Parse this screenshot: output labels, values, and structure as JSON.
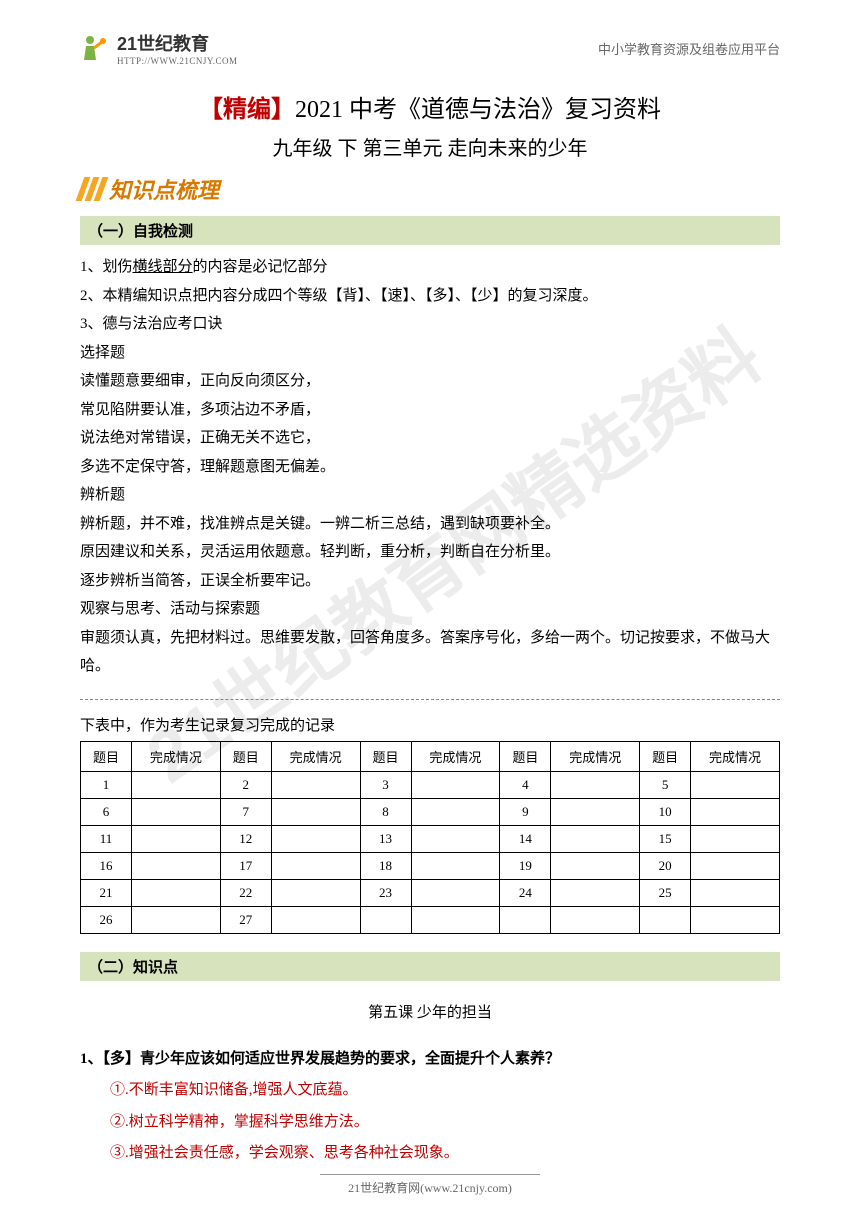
{
  "header": {
    "logo_text": "21世纪教育",
    "logo_sub": "HTTP://WWW.21CNJY.COM",
    "right_text": "中小学教育资源及组卷应用平台"
  },
  "watermark": "21世纪教育网精选资料",
  "title": {
    "prefix": "【精编】",
    "suffix": "2021 中考《道德与法治》复习资料"
  },
  "subtitle": "九年级 下 第三单元 走向未来的少年",
  "banner": "知识点梳理",
  "section1": {
    "header": "（一）自我检测",
    "line1_pre": "1、划伤",
    "line1_u": "横线部分",
    "line1_post": "的内容是必记忆部分",
    "line2": "2、本精编知识点把内容分成四个等级【背】、【速】、【多】、【少】的复习深度。",
    "line3": "3、德与法治应考口诀",
    "l4": "选择题",
    "l5": "读懂题意要细审，正向反向须区分，",
    "l6": "常见陷阱要认准，多项沾边不矛盾，",
    "l7": "说法绝对常错误，正确无关不选它，",
    "l8": "多选不定保守答，理解题意图无偏差。",
    "l9": "辨析题",
    "l10": "辨析题，并不难，找准辨点是关键。一辨二析三总结，遇到缺项要补全。",
    "l11": "原因建议和关系，灵活运用依题意。轻判断，重分析，判断自在分析里。",
    "l12": "逐步辨析当简答，正误全析要牢记。",
    "l13": "观察与思考、活动与探索题",
    "l14": "审题须认真，先把材料过。思维要发散，回答角度多。答案序号化，多给一两个。切记按要求，不做马大哈。"
  },
  "table_intro": "下表中，作为考生记录复习完成的记录",
  "table": {
    "headers": [
      "题目",
      "完成情况",
      "题目",
      "完成情况",
      "题目",
      "完成情况",
      "题目",
      "完成情况",
      "题目",
      "完成情况"
    ],
    "rows": [
      [
        "1",
        "",
        "2",
        "",
        "3",
        "",
        "4",
        "",
        "5",
        ""
      ],
      [
        "6",
        "",
        "7",
        "",
        "8",
        "",
        "9",
        "",
        "10",
        ""
      ],
      [
        "11",
        "",
        "12",
        "",
        "13",
        "",
        "14",
        "",
        "15",
        ""
      ],
      [
        "16",
        "",
        "17",
        "",
        "18",
        "",
        "19",
        "",
        "20",
        ""
      ],
      [
        "21",
        "",
        "22",
        "",
        "23",
        "",
        "24",
        "",
        "25",
        ""
      ],
      [
        "26",
        "",
        "27",
        "",
        "",
        "",
        "",
        "",
        "",
        ""
      ]
    ]
  },
  "section2": {
    "header": "（二）知识点",
    "lesson": "第五课  少年的担当"
  },
  "question": {
    "title": "1、【多】青少年应该如何适应世界发展趋势的要求，全面提升个人素养？",
    "a1": "①.不断丰富知识储备,增强人文底蕴。",
    "a2": "②.树立科学精神，掌握科学思维方法。",
    "a3": "③.增强社会责任感，学会观察、思考各种社会现象。"
  },
  "footer": "21世纪教育网(www.21cnjy.com)",
  "colors": {
    "red": "#c00000",
    "green_bg": "#d6e3bc",
    "orange": "#e36c0a",
    "banner_orange": "#d97800",
    "stripe": "#f5a623"
  }
}
